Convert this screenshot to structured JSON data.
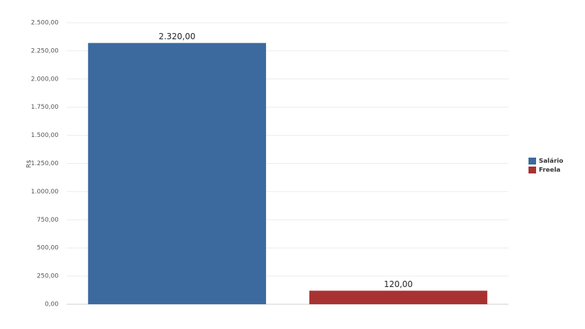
{
  "chart_data": {
    "type": "bar",
    "y_label": "R$",
    "categories": [
      null
    ],
    "series": [
      {
        "name": "Salário",
        "color": "#3c6a9e",
        "values": [
          2320
        ],
        "value_labels": [
          "2.320,00"
        ]
      },
      {
        "name": "Freela",
        "color": "#a83232",
        "values": [
          120
        ],
        "value_labels": [
          "120,00"
        ]
      }
    ],
    "ylim": [
      0,
      2500
    ],
    "yticks": [
      {
        "value": 0,
        "label": "0,00"
      },
      {
        "value": 250,
        "label": "250,00"
      },
      {
        "value": 500,
        "label": "500,00"
      },
      {
        "value": 750,
        "label": "750,00"
      },
      {
        "value": 1000,
        "label": "1.000,00"
      },
      {
        "value": 1250,
        "label": "1.250,00"
      },
      {
        "value": 1500,
        "label": "1.500,00"
      },
      {
        "value": 1750,
        "label": "1.750,00"
      },
      {
        "value": 2000,
        "label": "2.000,00"
      },
      {
        "value": 2250,
        "label": "2.250,00"
      },
      {
        "value": 2500,
        "label": "2.500,00"
      }
    ],
    "grid": true,
    "legend": "right"
  }
}
